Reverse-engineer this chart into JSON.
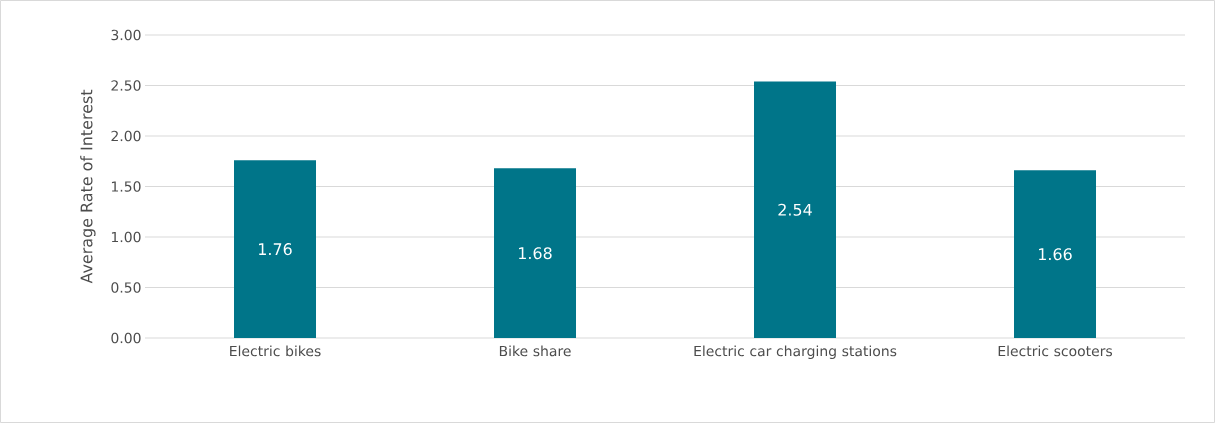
{
  "chart_data": {
    "type": "bar",
    "ylabel": "Average Rate of Interest",
    "categories": [
      "Electric bikes",
      "Bike share",
      "Electric car charging stations",
      "Electric scooters"
    ],
    "values": [
      1.76,
      1.68,
      2.54,
      1.66
    ],
    "color": "#007589",
    "ylim": [
      0,
      3
    ],
    "yticks": [
      {
        "value": 0,
        "label": "0.00"
      },
      {
        "value": 0.5,
        "label": "0.50"
      },
      {
        "value": 1,
        "label": "1.00"
      },
      {
        "value": 1.5,
        "label": "1.50"
      },
      {
        "value": 2,
        "label": "2.00"
      },
      {
        "value": 2.5,
        "label": "2.50"
      },
      {
        "value": 3,
        "label": "3.00"
      }
    ],
    "grid": "y",
    "data_labels": true
  }
}
